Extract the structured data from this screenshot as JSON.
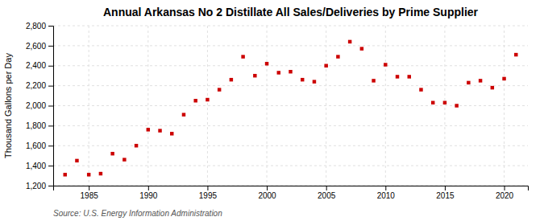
{
  "chart_data": {
    "type": "scatter",
    "title": "Annual Arkansas No 2 Distillate All Sales/Deliveries by Prime Supplier",
    "ylabel": "Thousand Gallons per Day",
    "source": "Source: U.S. Energy Information Administration",
    "color": "#cc0000",
    "marker": "square",
    "x": [
      1983,
      1984,
      1985,
      1986,
      1987,
      1988,
      1989,
      1990,
      1991,
      1992,
      1993,
      1994,
      1995,
      1996,
      1997,
      1998,
      1999,
      2000,
      2001,
      2002,
      2003,
      2004,
      2005,
      2006,
      2007,
      2008,
      2009,
      2010,
      2011,
      2012,
      2013,
      2014,
      2015,
      2016,
      2017,
      2018,
      2019,
      2020,
      2021
    ],
    "values": [
      1310,
      1450,
      1310,
      1320,
      1520,
      1460,
      1600,
      1760,
      1750,
      1720,
      1910,
      2050,
      2060,
      2160,
      2260,
      2490,
      2300,
      2420,
      2330,
      2340,
      2260,
      2240,
      2400,
      2490,
      2640,
      2570,
      2250,
      2410,
      2290,
      2290,
      2160,
      2030,
      2030,
      2000,
      2230,
      2250,
      2180,
      2270,
      2510
    ],
    "xlim": [
      1982,
      2022
    ],
    "xticks": [
      1985,
      1990,
      1995,
      2000,
      2005,
      2010,
      2015,
      2020
    ],
    "ylim": [
      1200,
      2800
    ],
    "yticks": [
      {
        "value": 1200,
        "label": "1,200"
      },
      {
        "value": 1400,
        "label": "1,400"
      },
      {
        "value": 1600,
        "label": "1,600"
      },
      {
        "value": 1800,
        "label": "1,800"
      },
      {
        "value": 2000,
        "label": "2,000"
      },
      {
        "value": 2200,
        "label": "2,200"
      },
      {
        "value": 2400,
        "label": "2,400"
      },
      {
        "value": 2600,
        "label": "2,600"
      },
      {
        "value": 2800,
        "label": "2,800"
      }
    ],
    "grid": true
  }
}
